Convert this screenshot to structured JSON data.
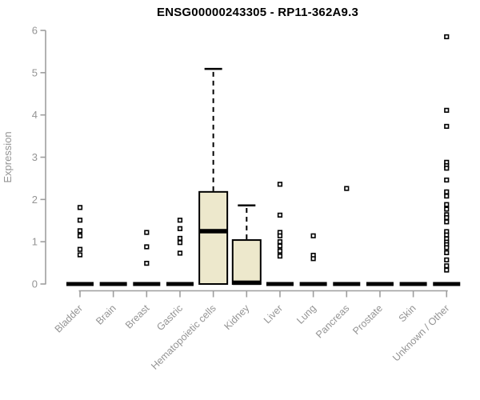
{
  "title": "ENSG00000243305 - RP11-362A9.3",
  "colors": {
    "background": "#ffffff",
    "title": "#000000",
    "axis_line": "#9e9e9e",
    "axis_text": "#949494",
    "box_fill": "#EDE8CC",
    "box_stroke": "#000000",
    "median": "#000000",
    "whisker": "#000000",
    "point_stroke": "#000000",
    "point_fill": "#ffffff"
  },
  "chart_data": {
    "type": "boxplot",
    "title": "ENSG00000243305 - RP11-362A9.3",
    "xlabel": "",
    "ylabel": "Expression",
    "ylim": [
      0,
      6
    ],
    "yticks": [
      0,
      1,
      2,
      3,
      4,
      5,
      6
    ],
    "grid": false,
    "legend": "none",
    "categories": [
      "Bladder",
      "Brain",
      "Breast",
      "Gastric",
      "Hematopoietic cells",
      "Kidney",
      "Liver",
      "Lung",
      "Pancreas",
      "Prostate",
      "Skin",
      "Unknown / Other"
    ],
    "series": [
      {
        "category": "Bladder",
        "q1": 0,
        "median": 0,
        "q3": 0,
        "whisker_low": 0,
        "whisker_high": 0,
        "outliers": [
          1.81,
          1.51,
          1.26,
          1.14,
          0.82,
          0.69
        ]
      },
      {
        "category": "Brain",
        "q1": 0,
        "median": 0,
        "q3": 0,
        "whisker_low": 0,
        "whisker_high": 0,
        "outliers": []
      },
      {
        "category": "Breast",
        "q1": 0,
        "median": 0,
        "q3": 0,
        "whisker_low": 0,
        "whisker_high": 0,
        "outliers": [
          1.22,
          0.88,
          0.49
        ]
      },
      {
        "category": "Gastric",
        "q1": 0,
        "median": 0,
        "q3": 0,
        "whisker_low": 0,
        "whisker_high": 0,
        "outliers": [
          1.51,
          1.31,
          1.08,
          0.98,
          0.73
        ]
      },
      {
        "category": "Hematopoietic cells",
        "q1": 0,
        "median": 1.25,
        "q3": 2.18,
        "whisker_low": 0,
        "whisker_high": 5.09,
        "outliers": []
      },
      {
        "category": "Kidney",
        "q1": 0,
        "median": 0.03,
        "q3": 1.04,
        "whisker_low": 0,
        "whisker_high": 1.86,
        "outliers": []
      },
      {
        "category": "Liver",
        "q1": 0,
        "median": 0,
        "q3": 0,
        "whisker_low": 0,
        "whisker_high": 0,
        "outliers": [
          2.36,
          1.63,
          1.22,
          1.14,
          1.0,
          0.9,
          0.78,
          0.66
        ]
      },
      {
        "category": "Lung",
        "q1": 0,
        "median": 0,
        "q3": 0,
        "whisker_low": 0,
        "whisker_high": 0,
        "outliers": [
          1.14,
          0.68,
          0.6
        ]
      },
      {
        "category": "Pancreas",
        "q1": 0,
        "median": 0,
        "q3": 0,
        "whisker_low": 0,
        "whisker_high": 0,
        "outliers": [
          2.26
        ]
      },
      {
        "category": "Prostate",
        "q1": 0,
        "median": 0,
        "q3": 0,
        "whisker_low": 0,
        "whisker_high": 0,
        "outliers": []
      },
      {
        "category": "Skin",
        "q1": 0,
        "median": 0,
        "q3": 0,
        "whisker_low": 0,
        "whisker_high": 0,
        "outliers": []
      },
      {
        "category": "Unknown / Other",
        "q1": 0,
        "median": 0,
        "q3": 0,
        "whisker_low": 0,
        "whisker_high": 0,
        "outliers": [
          5.85,
          4.11,
          3.73,
          2.88,
          2.8,
          2.74,
          2.46,
          2.18,
          2.08,
          1.88,
          1.77,
          1.64,
          1.57,
          1.47,
          1.24,
          1.16,
          1.07,
          0.99,
          0.93,
          0.86,
          0.74,
          0.57,
          0.43,
          0.33
        ]
      }
    ]
  }
}
